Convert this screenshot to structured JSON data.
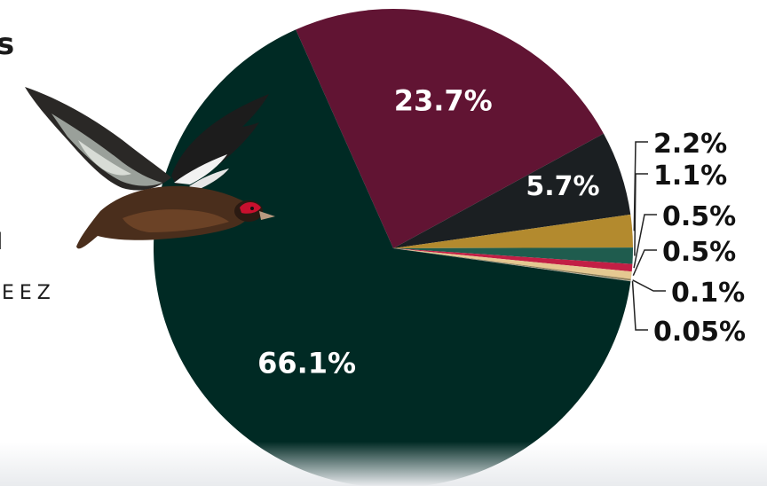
{
  "page": {
    "title_fragment": "s",
    "text_fragment_1": "l",
    "text_fragment_2": "EEZ"
  },
  "illustration": {
    "icon": "flying-duck-illustration"
  },
  "chart_data": {
    "type": "pie",
    "title": "",
    "start_angle_deg": -24,
    "direction": "clockwise",
    "legend": "none",
    "slices": [
      {
        "label": "23.7%",
        "value": 23.7,
        "color": "#611433",
        "label_pos": "inside",
        "label_color": "#ffffff"
      },
      {
        "label": "5.7%",
        "value": 5.7,
        "color": "#1b1f22",
        "label_pos": "inside",
        "label_color": "#ffffff"
      },
      {
        "label": "2.2%",
        "value": 2.2,
        "color": "#b38a2e",
        "label_pos": "outside",
        "label_color": "#111111"
      },
      {
        "label": "1.1%",
        "value": 1.1,
        "color": "#1f5c4e",
        "label_pos": "outside",
        "label_color": "#111111"
      },
      {
        "label": "0.5%",
        "value": 0.5,
        "color": "#c21f45",
        "label_pos": "outside",
        "label_color": "#111111"
      },
      {
        "label": "0.5%",
        "value": 0.5,
        "color": "#e5c891",
        "label_pos": "outside",
        "label_color": "#111111"
      },
      {
        "label": "0.1%",
        "value": 0.1,
        "color": "#8a7a55",
        "label_pos": "outside",
        "label_color": "#111111"
      },
      {
        "label": "0.05%",
        "value": 0.05,
        "color": "#b7b19c",
        "label_pos": "outside",
        "label_color": "#111111"
      },
      {
        "label": "66.1%",
        "value": 66.1,
        "color": "#002a24",
        "label_pos": "inside",
        "label_color": "#ffffff"
      }
    ]
  }
}
